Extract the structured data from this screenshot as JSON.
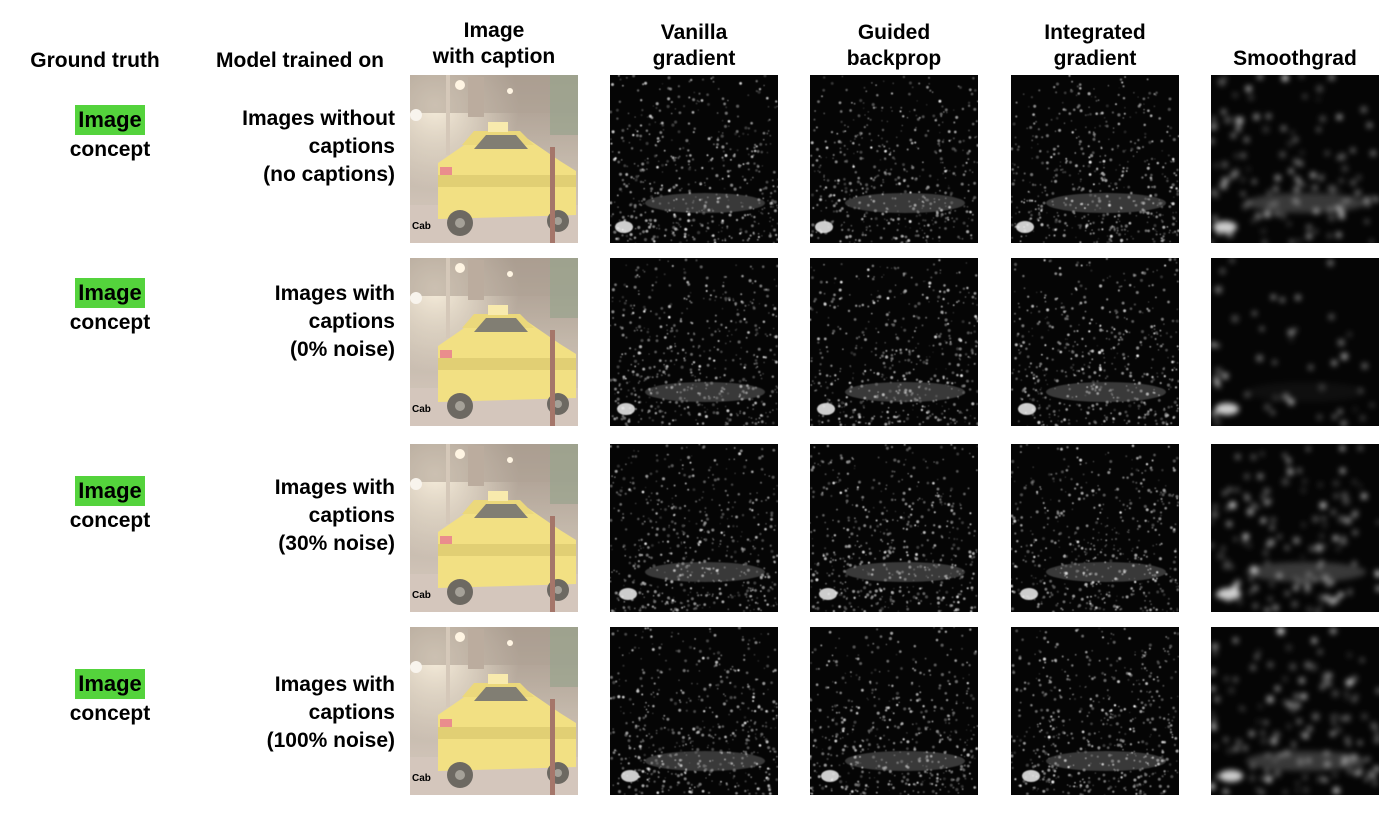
{
  "headers": {
    "ground_truth": "Ground truth",
    "model_trained_on": "Model trained on",
    "image_caption_line1": "Image",
    "image_caption_line2": "with caption",
    "vanilla_line1": "Vanilla",
    "vanilla_line2": "gradient",
    "guided_line1": "Guided",
    "guided_line2": "backprop",
    "integrated_line1": "Integrated",
    "integrated_line2": "gradient",
    "smoothgrad": "Smoothgrad"
  },
  "rows": [
    {
      "gt_word": "Image",
      "gt_concept": "concept",
      "model_line1": "Images without",
      "model_line2": "captions",
      "model_line3": "(no captions)",
      "caption": "Cab"
    },
    {
      "gt_word": "Image",
      "gt_concept": "concept",
      "model_line1": "Images with",
      "model_line2": "captions",
      "model_line3": "(0% noise)",
      "caption": "Cab"
    },
    {
      "gt_word": "Image",
      "gt_concept": "concept",
      "model_line1": "Images with",
      "model_line2": "captions",
      "model_line3": "(30% noise)",
      "caption": "Cab"
    },
    {
      "gt_word": "Image",
      "gt_concept": "concept",
      "model_line1": "Images with",
      "model_line2": "captions",
      "model_line3": "(100% noise)",
      "caption": "Cab"
    }
  ],
  "colors": {
    "concept_highlight": "#54d33c",
    "saliency_background": "#050505",
    "taxi_yellow": "#f2d44a"
  },
  "icons": {
    "photo": "taxi-cab-photo",
    "saliency": "saliency-map"
  }
}
